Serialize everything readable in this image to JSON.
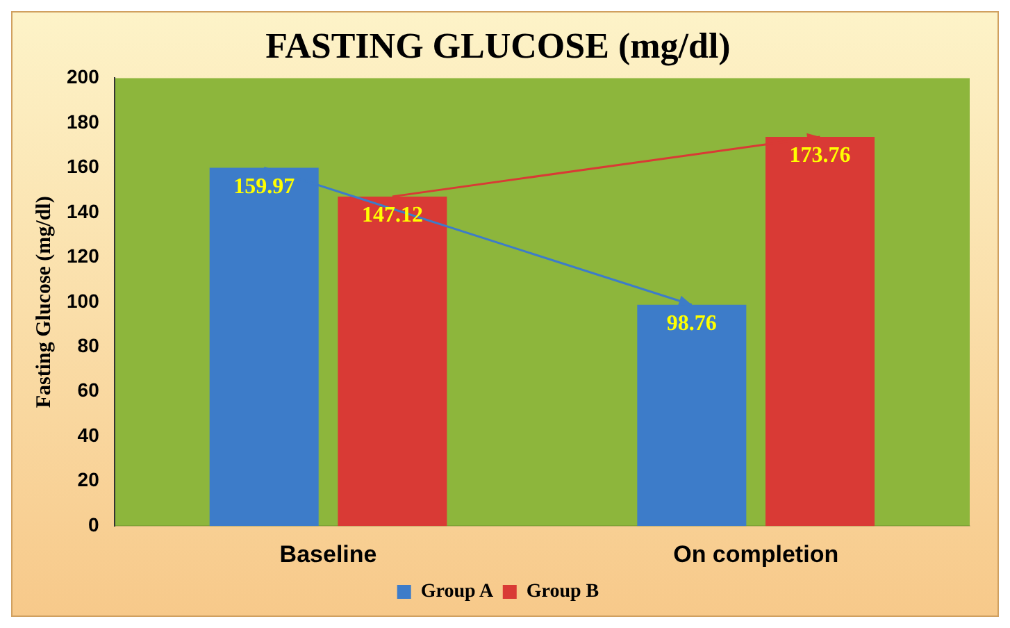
{
  "chart_data": {
    "type": "bar",
    "title": "FASTING GLUCOSE (mg/dl)",
    "ylabel": "Fasting Glucose (mg/dl)",
    "categories": [
      "Baseline",
      "On completion"
    ],
    "series": [
      {
        "name": "Group A",
        "color": "#3d7cc9",
        "values": [
          159.97,
          98.76
        ]
      },
      {
        "name": "Group B",
        "color": "#d93a35",
        "values": [
          147.12,
          173.76
        ]
      }
    ],
    "ylim": [
      0,
      200
    ],
    "yticks": [
      0,
      20,
      40,
      60,
      80,
      100,
      120,
      140,
      160,
      180,
      200
    ],
    "grid": false,
    "legend": "bottom",
    "data_labels": true
  }
}
